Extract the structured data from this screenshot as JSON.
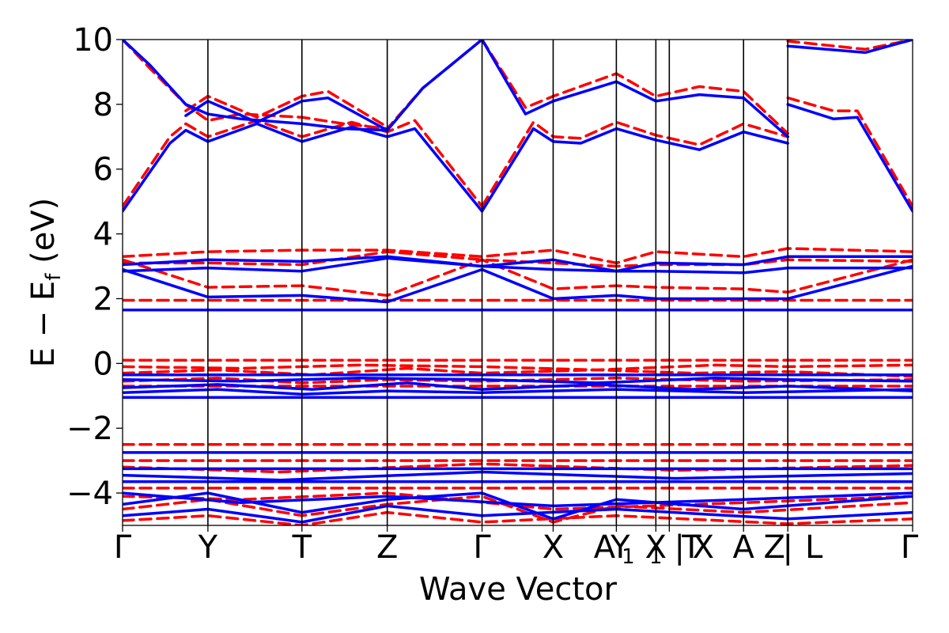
{
  "chart_data": {
    "type": "line",
    "title": "",
    "xlabel": "Wave Vector",
    "ylabel_parts": {
      "main": "E − E",
      "sub": "f",
      "unit": " (eV)"
    },
    "ylim": [
      -5,
      10
    ],
    "yticks": [
      -4,
      -2,
      0,
      2,
      4,
      6,
      8,
      10
    ],
    "ytick_labels": [
      "−4",
      "−2",
      "0",
      "2",
      "4",
      "6",
      "8",
      "10"
    ],
    "xlim": [
      0,
      10
    ],
    "kpoint_positions": [
      0,
      1.08,
      2.27,
      3.35,
      4.55,
      5.45,
      6.25,
      6.75,
      6.92,
      7.86,
      8.42,
      10
    ],
    "kpoint_labels": [
      {
        "text": "Γ",
        "pos": 0
      },
      {
        "text": "Y",
        "pos": 1.08
      },
      {
        "text": "T",
        "pos": 2.27
      },
      {
        "text": "Z",
        "pos": 3.35
      },
      {
        "text": "Γ",
        "pos": 4.55
      },
      {
        "text": "X",
        "pos": 5.45
      },
      {
        "text": "A",
        "pos": 6.1
      },
      {
        "text": "1",
        "pos": 6.4
      },
      {
        "text": "Y",
        "pos": 6.3
      },
      {
        "text": "X",
        "pos": 6.75
      },
      {
        "text": "1",
        "pos": 6.75
      },
      {
        "text": "|",
        "pos": 7.05
      },
      {
        "text": "T",
        "pos": 7.2
      },
      {
        "text": "X",
        "pos": 7.35
      },
      {
        "text": "A",
        "pos": 7.86
      },
      {
        "text": "Z",
        "pos": 8.25
      },
      {
        "text": "|",
        "pos": 8.42
      },
      {
        "text": "L",
        "pos": 8.75
      },
      {
        "text": "Γ",
        "pos": 10
      }
    ],
    "series": [
      {
        "name": "blue-solid",
        "color": "#0000ff",
        "dash": "solid",
        "description": "Band structure (solid)"
      },
      {
        "name": "red-dashed",
        "color": "#ff0000",
        "dash": "dashed",
        "description": "Band structure (dashed)"
      }
    ],
    "bands": {
      "blue": [
        {
          "x": [
            0,
            0.35,
            0.8,
            1.08,
            1.5,
            2.27,
            2.8,
            3.35,
            3.8,
            4.55
          ],
          "y": [
            10,
            9.2,
            8.0,
            7.7,
            7.55,
            7.4,
            7.25,
            7.2,
            8.5,
            10
          ]
        },
        {
          "x": [
            0,
            0.6,
            0.8,
            1.08,
            1.7,
            2.27,
            2.9,
            3.35,
            3.7,
            4.55
          ],
          "y": [
            4.7,
            6.8,
            7.2,
            6.85,
            7.4,
            6.85,
            7.3,
            7.0,
            7.25,
            4.7
          ]
        },
        {
          "x": [
            0.8,
            1.08,
            1.7,
            2.27,
            2.6,
            3.35
          ],
          "y": [
            7.65,
            8.1,
            7.45,
            8.1,
            8.2,
            7.2
          ]
        },
        {
          "x": [
            4.55,
            5.1,
            5.45,
            6.25,
            6.75,
            7.3,
            7.86,
            8.42
          ],
          "y": [
            10,
            7.7,
            8.1,
            8.7,
            8.1,
            8.3,
            8.2,
            7.0
          ]
        },
        {
          "x": [
            4.55,
            5.2,
            5.45,
            5.8,
            6.25,
            6.75,
            7.3,
            7.86,
            8.42
          ],
          "y": [
            4.7,
            7.25,
            6.85,
            6.8,
            7.25,
            6.9,
            6.6,
            7.15,
            6.8
          ]
        },
        {
          "x": [
            8.42,
            9.0,
            9.3,
            10
          ],
          "y": [
            8.0,
            7.55,
            7.6,
            4.7
          ]
        },
        {
          "x": [
            8.42,
            9.4,
            10
          ],
          "y": [
            9.8,
            9.6,
            10
          ]
        },
        {
          "x": [
            0,
            10
          ],
          "y": [
            1.65,
            1.65
          ]
        },
        {
          "x": [
            0,
            1.08,
            2.27,
            3.35,
            4.55,
            5.45,
            6.25,
            6.75,
            7.86,
            8.42,
            10
          ],
          "y": [
            2.9,
            2.05,
            2.1,
            1.9,
            2.9,
            2.0,
            2.1,
            2.0,
            2.0,
            2.0,
            3.0
          ]
        },
        {
          "x": [
            0,
            1.08,
            2.27,
            3.35,
            4.55,
            5.45,
            6.25,
            6.75,
            7.86,
            8.42,
            10
          ],
          "y": [
            3.05,
            3.2,
            3.15,
            3.3,
            3.0,
            3.2,
            2.85,
            3.1,
            3.05,
            3.3,
            3.3
          ]
        },
        {
          "x": [
            0,
            1.08,
            2.27,
            3.35,
            4.55,
            5.45,
            6.25,
            6.75,
            7.86,
            8.42,
            10
          ],
          "y": [
            2.85,
            2.95,
            2.85,
            3.25,
            3.0,
            2.9,
            2.85,
            2.85,
            2.8,
            2.95,
            2.95
          ]
        },
        {
          "x": [
            0,
            10
          ],
          "y": [
            -0.35,
            -0.35
          ]
        },
        {
          "x": [
            0,
            1.5,
            3.0,
            4.55,
            6.0,
            7.5,
            8.42,
            10
          ],
          "y": [
            -0.5,
            -0.55,
            -0.45,
            -0.5,
            -0.6,
            -0.45,
            -0.5,
            -0.55
          ]
        },
        {
          "x": [
            0,
            1.2,
            2.4,
            3.6,
            4.55,
            6.0,
            7.2,
            8.42,
            10
          ],
          "y": [
            -0.75,
            -0.65,
            -0.8,
            -0.6,
            -0.8,
            -0.65,
            -0.8,
            -0.7,
            -0.85
          ]
        },
        {
          "x": [
            0,
            10
          ],
          "y": [
            -1.05,
            -1.05
          ]
        },
        {
          "x": [
            0,
            1.2,
            2.27,
            3.35,
            4.55,
            6.25,
            7.86,
            10
          ],
          "y": [
            -0.9,
            -0.8,
            -0.95,
            -0.85,
            -0.9,
            -0.8,
            -0.9,
            -0.8
          ]
        },
        {
          "x": [
            0,
            10
          ],
          "y": [
            -2.75,
            -2.75
          ]
        },
        {
          "x": [
            0,
            10
          ],
          "y": [
            -3.25,
            -3.25
          ]
        },
        {
          "x": [
            0,
            2,
            4.55,
            7,
            10
          ],
          "y": [
            -3.45,
            -3.6,
            -3.35,
            -3.55,
            -3.4
          ]
        },
        {
          "x": [
            0,
            10
          ],
          "y": [
            -3.65,
            -3.65
          ]
        },
        {
          "x": [
            0,
            1.5,
            3.35,
            5.45,
            7.86,
            10
          ],
          "y": [
            -4.0,
            -4.3,
            -4.1,
            -4.4,
            -4.2,
            -4.0
          ]
        },
        {
          "x": [
            0,
            1.08,
            2.27,
            3.35,
            4.55,
            5.45,
            6.25,
            7.86,
            10
          ],
          "y": [
            -4.35,
            -4.0,
            -4.6,
            -4.2,
            -4.0,
            -4.8,
            -4.2,
            -4.5,
            -4.1
          ]
        },
        {
          "x": [
            0,
            1.08,
            2.27,
            3.35,
            4.55,
            6.25,
            8.42,
            10
          ],
          "y": [
            -4.7,
            -4.5,
            -4.9,
            -4.4,
            -4.7,
            -4.5,
            -4.8,
            -4.6
          ]
        }
      ],
      "red": [
        {
          "x": [
            0,
            0.35,
            0.8,
            1.08,
            1.5,
            2.27,
            2.8,
            3.35,
            3.8,
            4.55
          ],
          "y": [
            10,
            9.1,
            8.0,
            7.5,
            7.7,
            7.6,
            7.4,
            7.25,
            8.5,
            10
          ]
        },
        {
          "x": [
            0,
            0.6,
            0.8,
            1.08,
            1.7,
            2.27,
            2.9,
            3.35,
            3.7,
            4.55
          ],
          "y": [
            4.85,
            7.0,
            7.4,
            7.0,
            7.5,
            7.0,
            7.45,
            7.15,
            7.5,
            4.85
          ]
        },
        {
          "x": [
            0.8,
            1.08,
            1.7,
            2.27,
            2.6,
            3.35
          ],
          "y": [
            7.8,
            8.25,
            7.6,
            8.25,
            8.4,
            7.3
          ]
        },
        {
          "x": [
            4.55,
            5.1,
            5.45,
            6.25,
            6.75,
            7.3,
            7.86,
            8.42
          ],
          "y": [
            10,
            7.9,
            8.25,
            8.95,
            8.25,
            8.55,
            8.4,
            7.1
          ]
        },
        {
          "x": [
            4.55,
            5.2,
            5.45,
            5.8,
            6.25,
            6.75,
            7.3,
            7.86,
            8.42
          ],
          "y": [
            4.85,
            7.45,
            7.0,
            6.95,
            7.45,
            7.05,
            6.75,
            7.4,
            7.0
          ]
        },
        {
          "x": [
            8.42,
            9.0,
            9.3,
            10
          ],
          "y": [
            8.2,
            7.8,
            7.8,
            4.85
          ]
        },
        {
          "x": [
            8.42,
            9.4,
            10
          ],
          "y": [
            9.95,
            9.7,
            10
          ]
        },
        {
          "x": [
            0,
            10
          ],
          "y": [
            1.95,
            1.95
          ]
        },
        {
          "x": [
            0,
            1.08,
            2.27,
            3.35,
            4.55,
            5.45,
            6.25,
            6.75,
            7.86,
            8.42,
            10
          ],
          "y": [
            3.2,
            2.35,
            2.4,
            2.1,
            3.2,
            2.3,
            2.4,
            2.35,
            2.3,
            2.2,
            3.2
          ]
        },
        {
          "x": [
            0,
            1.08,
            2.27,
            3.35,
            4.55,
            5.45,
            6.25,
            6.75,
            7.86,
            8.42,
            10
          ],
          "y": [
            3.3,
            3.45,
            3.5,
            3.5,
            3.3,
            3.5,
            3.1,
            3.45,
            3.3,
            3.55,
            3.45
          ]
        },
        {
          "x": [
            0,
            1.08,
            2.27,
            3.35,
            4.55,
            5.45,
            6.25,
            6.75,
            7.86,
            8.42,
            10
          ],
          "y": [
            3.1,
            3.1,
            3.05,
            3.45,
            3.2,
            3.1,
            3.0,
            3.05,
            3.05,
            3.2,
            3.15
          ]
        },
        {
          "x": [
            0,
            10
          ],
          "y": [
            0.1,
            0.1
          ]
        },
        {
          "x": [
            0,
            1.5,
            3.0,
            4.55,
            6.0,
            7.5,
            8.42,
            10
          ],
          "y": [
            -0.1,
            -0.15,
            -0.05,
            -0.1,
            -0.2,
            -0.05,
            -0.1,
            -0.05
          ]
        },
        {
          "x": [
            0,
            1.2,
            2.4,
            3.6,
            4.55,
            6.0,
            7.2,
            8.42,
            10
          ],
          "y": [
            -0.3,
            -0.2,
            -0.35,
            -0.15,
            -0.3,
            -0.2,
            -0.3,
            -0.25,
            -0.4
          ]
        },
        {
          "x": [
            0,
            10
          ],
          "y": [
            -0.7,
            -0.7
          ]
        },
        {
          "x": [
            0,
            1.2,
            2.27,
            3.35,
            4.55,
            6.25,
            7.86,
            10
          ],
          "y": [
            -0.55,
            -0.45,
            -0.6,
            -0.5,
            -0.55,
            -0.45,
            -0.55,
            -0.5
          ]
        },
        {
          "x": [
            0,
            10
          ],
          "y": [
            -2.5,
            -2.5
          ]
        },
        {
          "x": [
            0,
            10
          ],
          "y": [
            -3.0,
            -3.0
          ]
        },
        {
          "x": [
            0,
            2,
            4.55,
            7,
            10
          ],
          "y": [
            -3.2,
            -3.35,
            -3.1,
            -3.3,
            -3.15
          ]
        },
        {
          "x": [
            0,
            10
          ],
          "y": [
            -3.85,
            -3.85
          ]
        },
        {
          "x": [
            0,
            1.5,
            3.35,
            5.45,
            7.86,
            10
          ],
          "y": [
            -4.1,
            -4.2,
            -4.0,
            -4.5,
            -4.3,
            -4.1
          ]
        },
        {
          "x": [
            0,
            1.08,
            2.27,
            3.35,
            4.55,
            5.45,
            6.25,
            7.86,
            10
          ],
          "y": [
            -4.5,
            -4.2,
            -4.7,
            -4.35,
            -4.1,
            -4.9,
            -4.4,
            -4.6,
            -4.3
          ]
        },
        {
          "x": [
            0,
            1.08,
            2.27,
            3.35,
            4.55,
            6.25,
            8.42,
            10
          ],
          "y": [
            -4.85,
            -4.7,
            -5.0,
            -4.6,
            -4.9,
            -4.7,
            -4.95,
            -4.8
          ]
        }
      ]
    }
  }
}
